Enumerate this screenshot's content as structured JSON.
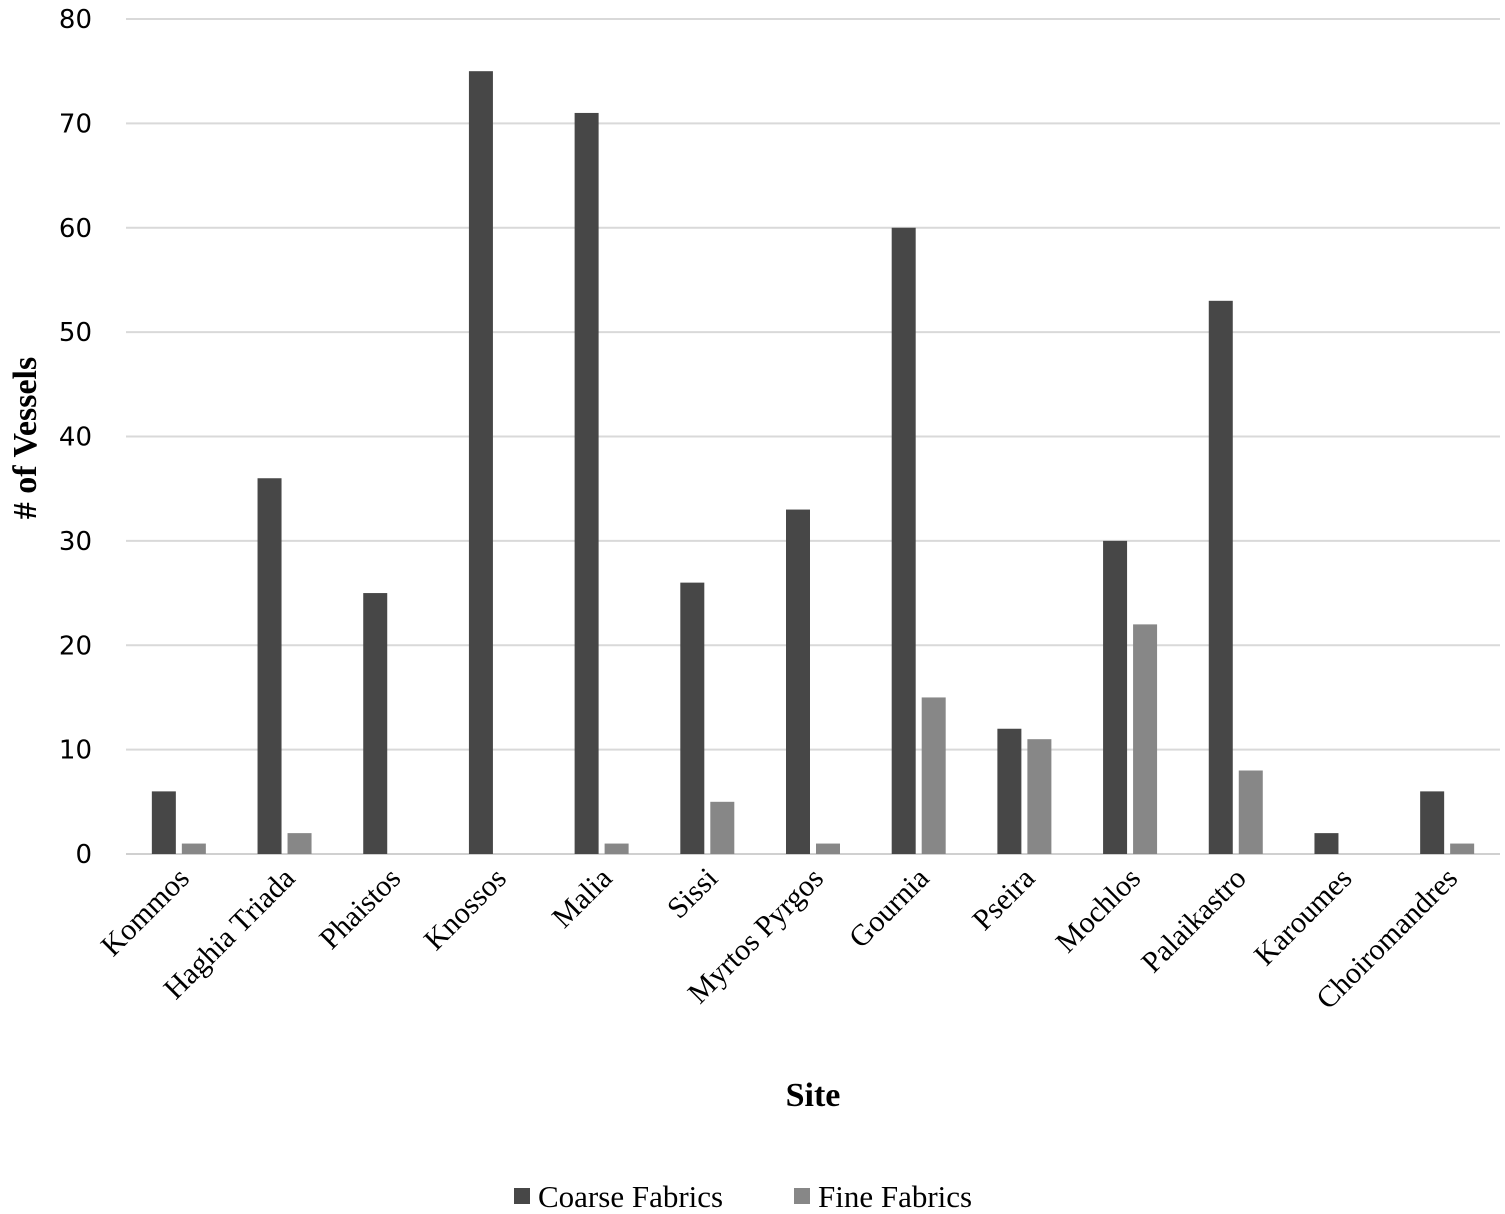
{
  "chart_data": {
    "type": "bar",
    "xlabel": "Site",
    "ylabel": "# of Vessels",
    "ylim": [
      0,
      80
    ],
    "yticks": [
      0,
      10,
      20,
      30,
      40,
      50,
      60,
      70,
      80
    ],
    "grid": true,
    "legend_position": "bottom",
    "categories": [
      "Kommos",
      "Haghia Triada",
      "Phaistos",
      "Knossos",
      "Malia",
      "Sissi",
      "Myrtos Pyrgos",
      "Gournia",
      "Pseira",
      "Mochlos",
      "Palaikastro",
      "Karoumes",
      "Choiromandres"
    ],
    "series": [
      {
        "name": "Coarse Fabrics",
        "color": "#474747",
        "values": [
          6,
          36,
          25,
          75,
          71,
          26,
          33,
          60,
          12,
          30,
          53,
          2,
          6
        ]
      },
      {
        "name": "Fine Fabrics",
        "color": "#878787",
        "values": [
          1,
          2,
          0,
          0,
          1,
          5,
          1,
          15,
          11,
          22,
          8,
          0,
          1
        ]
      }
    ]
  }
}
